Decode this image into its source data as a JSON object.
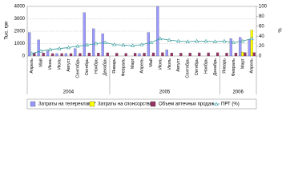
{
  "chart_data": {
    "type": "bar",
    "y_label": "Тыс. грн",
    "y2_label": "%",
    "groups": [
      {
        "label": "2004",
        "categories": [
          "Апрель",
          "Май",
          "Июнь",
          "Июль",
          "Август",
          "Сентябрь",
          "Октябрь",
          "Ноябрь",
          "Декабрь"
        ]
      },
      {
        "label": "2005",
        "categories": [
          "Январь",
          "Февраль",
          "Март",
          "Апрель",
          "Май",
          "Июнь",
          "Июль",
          "Август",
          "Сентябрь",
          "Октябрь",
          "Ноябрь",
          "Декабрь"
        ]
      },
      {
        "label": "2006",
        "categories": [
          "Январь",
          "Февраль",
          "Март",
          "Апрель"
        ]
      }
    ],
    "series": [
      {
        "name": "Затраты на телерекламу*",
        "color": "#9999ff",
        "values": [
          1900,
          1300,
          400,
          200,
          200,
          600,
          3500,
          2200,
          1800,
          0,
          0,
          0,
          200,
          1900,
          4000,
          500,
          0,
          0,
          0,
          0,
          0,
          0,
          1400,
          1500,
          1300
        ]
      },
      {
        "name": "Затраты на спонсорство*",
        "color": "#ffff00",
        "values": [
          0,
          0,
          0,
          0,
          0,
          0,
          0,
          0,
          0,
          0,
          0,
          0,
          0,
          0,
          0,
          0,
          0,
          0,
          0,
          0,
          0,
          0,
          0,
          300,
          2100
        ]
      },
      {
        "name": "Объем аптечных продаж",
        "color": "#993366",
        "values": [
          250,
          250,
          200,
          200,
          200,
          220,
          250,
          250,
          260,
          230,
          220,
          230,
          240,
          260,
          270,
          250,
          240,
          250,
          260,
          260,
          270,
          240,
          250,
          270,
          280
        ]
      },
      {
        "name": "ПРТ (%)",
        "color": "#339999",
        "axis": "y2",
        "type": "line",
        "values": [
          5,
          10,
          13,
          15,
          17,
          20,
          22,
          25,
          27,
          23,
          22,
          21,
          23,
          27,
          35,
          32,
          30,
          29,
          30,
          30,
          29,
          30,
          27,
          30,
          35
        ]
      }
    ],
    "ylim": [
      0,
      4000
    ],
    "yticks": [
      0,
      1000,
      2000,
      3000,
      4000
    ],
    "y2lim": [
      0,
      100
    ],
    "y2ticks": [
      0,
      20,
      40,
      60,
      80,
      100
    ],
    "grid": true
  }
}
